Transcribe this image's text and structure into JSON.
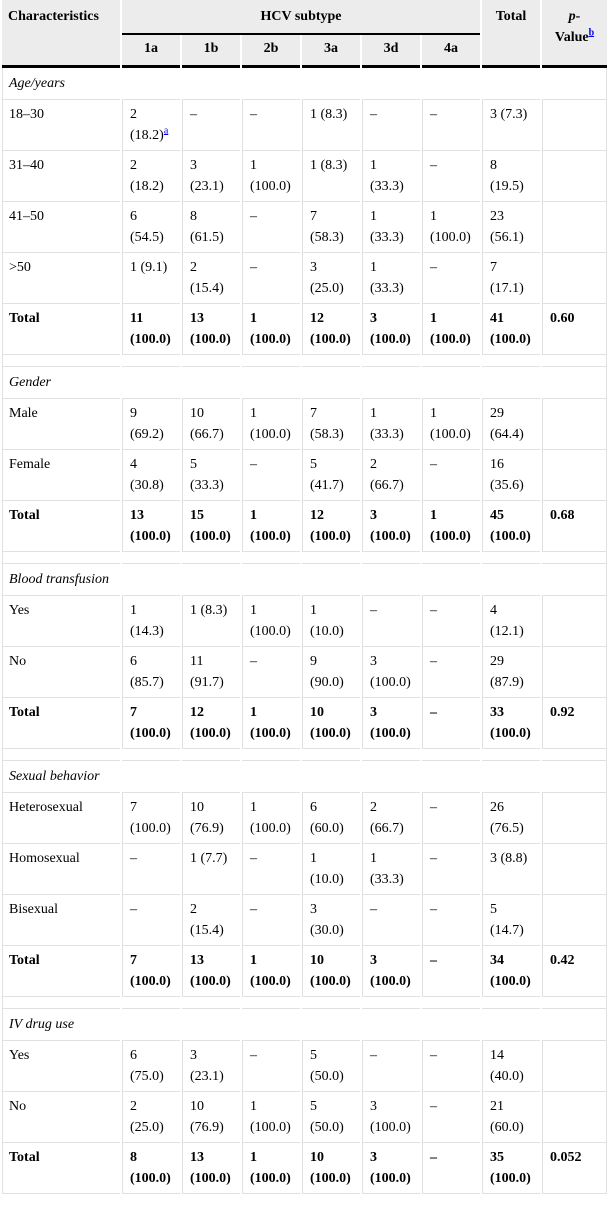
{
  "colors": {
    "header_bg": "#ececec",
    "grid_line": "#e0e0e0",
    "black_rule": "#000000",
    "link_blue": "#0000ee"
  },
  "table": {
    "header": {
      "characteristics": "Characteristics",
      "group_label": "HCV subtype",
      "subtypes": [
        "1a",
        "1b",
        "2b",
        "3a",
        "3d",
        "4a"
      ],
      "total_label": "Total",
      "pvalue_italic": "p",
      "pvalue_hyphen": "-",
      "pvalue_line2": "Value",
      "pvalue_footnote": "b"
    },
    "sections": [
      {
        "title": "Age/years",
        "rows": [
          {
            "label": "18–30",
            "cells": [
              "2 (18.2)",
              "–",
              "–",
              "1 (8.3)",
              "–",
              "–",
              "3 (7.3)"
            ],
            "pvalue": "",
            "footnotes": {
              "0": "a"
            }
          },
          {
            "label": "31–40",
            "cells": [
              "2 (18.2)",
              "3 (23.1)",
              "1 (100.0)",
              "1 (8.3)",
              "1 (33.3)",
              "–",
              "8 (19.5)"
            ],
            "pvalue": ""
          },
          {
            "label": "41–50",
            "cells": [
              "6 (54.5)",
              "8 (61.5)",
              "–",
              "7 (58.3)",
              "1 (33.3)",
              "1 (100.0)",
              "23 (56.1)"
            ],
            "pvalue": ""
          },
          {
            "label": ">50",
            "cells": [
              "1 (9.1)",
              "2 (15.4)",
              "–",
              "3 (25.0)",
              "1 (33.3)",
              "–",
              "7 (17.1)"
            ],
            "pvalue": ""
          }
        ],
        "total_row": {
          "label": "Total",
          "cells": [
            "11 (100.0)",
            "13 (100.0)",
            "1 (100.0)",
            "12 (100.0)",
            "3 (100.0)",
            "1 (100.0)",
            "41 (100.0)"
          ],
          "pvalue": "0.60"
        }
      },
      {
        "title": "Gender",
        "rows": [
          {
            "label": "Male",
            "cells": [
              "9 (69.2)",
              "10 (66.7)",
              "1 (100.0)",
              "7 (58.3)",
              "1 (33.3)",
              "1 (100.0)",
              "29 (64.4)"
            ],
            "pvalue": ""
          },
          {
            "label": "Female",
            "cells": [
              "4 (30.8)",
              "5 (33.3)",
              "–",
              "5 (41.7)",
              "2 (66.7)",
              "–",
              "16 (35.6)"
            ],
            "pvalue": ""
          }
        ],
        "total_row": {
          "label": "Total",
          "cells": [
            "13 (100.0)",
            "15 (100.0)",
            "1 (100.0)",
            "12 (100.0)",
            "3 (100.0)",
            "1 (100.0)",
            "45 (100.0)"
          ],
          "pvalue": "0.68"
        }
      },
      {
        "title": "Blood transfusion",
        "rows": [
          {
            "label": "Yes",
            "cells": [
              "1 (14.3)",
              "1 (8.3)",
              "1 (100.0)",
              "1 (10.0)",
              "–",
              "–",
              "4 (12.1)"
            ],
            "pvalue": ""
          },
          {
            "label": "No",
            "cells": [
              "6 (85.7)",
              "11 (91.7)",
              "–",
              "9 (90.0)",
              "3 (100.0)",
              "–",
              "29 (87.9)"
            ],
            "pvalue": ""
          }
        ],
        "total_row": {
          "label": "Total",
          "cells": [
            "7 (100.0)",
            "12 (100.0)",
            "1 (100.0)",
            "10 (100.0)",
            "3 (100.0)",
            "–",
            "33 (100.0)"
          ],
          "pvalue": "0.92"
        }
      },
      {
        "title": "Sexual behavior",
        "rows": [
          {
            "label": "Heterosexual",
            "cells": [
              "7 (100.0)",
              "10 (76.9)",
              "1 (100.0)",
              "6 (60.0)",
              "2 (66.7)",
              "–",
              "26 (76.5)"
            ],
            "pvalue": ""
          },
          {
            "label": "Homosexual",
            "cells": [
              "–",
              "1 (7.7)",
              "–",
              "1 (10.0)",
              "1 (33.3)",
              "–",
              "3 (8.8)"
            ],
            "pvalue": ""
          },
          {
            "label": "Bisexual",
            "cells": [
              "–",
              "2 (15.4)",
              "–",
              "3 (30.0)",
              "–",
              "–",
              "5 (14.7)"
            ],
            "pvalue": ""
          }
        ],
        "total_row": {
          "label": "Total",
          "cells": [
            "7 (100.0)",
            "13 (100.0)",
            "1 (100.0)",
            "10 (100.0)",
            "3 (100.0)",
            "–",
            "34 (100.0)"
          ],
          "pvalue": "0.42"
        }
      },
      {
        "title": "IV drug use",
        "rows": [
          {
            "label": "Yes",
            "cells": [
              "6 (75.0)",
              "3 (23.1)",
              "–",
              "5 (50.0)",
              "–",
              "–",
              "14 (40.0)"
            ],
            "pvalue": ""
          },
          {
            "label": "No",
            "cells": [
              "2 (25.0)",
              "10 (76.9)",
              "1 (100.0)",
              "5 (50.0)",
              "3 (100.0)",
              "–",
              "21 (60.0)"
            ],
            "pvalue": ""
          }
        ],
        "total_row": {
          "label": "Total",
          "cells": [
            "8 (100.0)",
            "13 (100.0)",
            "1 (100.0)",
            "10 (100.0)",
            "3 (100.0)",
            "–",
            "35 (100.0)"
          ],
          "pvalue": "0.052"
        }
      }
    ]
  }
}
